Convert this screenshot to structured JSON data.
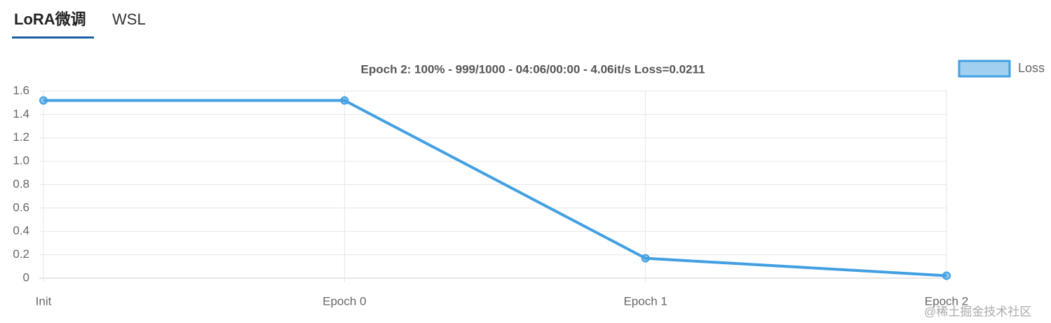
{
  "tabs": [
    "LoRA微调",
    "WSL"
  ],
  "watermark": "@稀土掘金技术社区",
  "chart_data": {
    "type": "line",
    "title": "Epoch 2: 100% - 999/1000 - 04:06/00:00 - 4.06it/s Loss=0.0211",
    "categories": [
      "Init",
      "Epoch 0",
      "Epoch 1",
      "Epoch 2"
    ],
    "series": [
      {
        "name": "Loss",
        "color": "#42a0e2",
        "values": [
          1.52,
          1.52,
          0.17,
          0.0211
        ]
      }
    ],
    "ylim": [
      0,
      1.6
    ],
    "yticks": [
      0,
      0.2,
      0.4,
      0.6,
      0.8,
      {
        "value": 1,
        "label": "1.0"
      },
      1.2,
      1.4,
      1.6
    ],
    "grid": true,
    "legend": "top-right"
  }
}
